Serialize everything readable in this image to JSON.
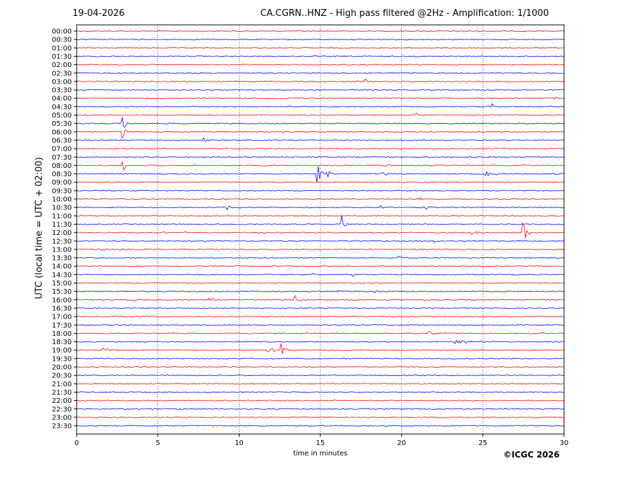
{
  "header": {
    "date": "19-04-2026",
    "title": "CA.CGRN..HNZ - High pass filtered @2Hz - Amplification: 1/1000"
  },
  "footer": {
    "credit": "©ICGC 2026"
  },
  "colors": {
    "red": "#ff0000",
    "blue": "#0000ff",
    "grid": "#0000aa",
    "axis": "#000000"
  },
  "chart_data": {
    "type": "line",
    "xlabel": "time in minutes",
    "ylabel": "UTC (local time = UTC + 02:00)",
    "xlim": [
      0,
      30
    ],
    "x_ticks": [
      0,
      5,
      10,
      15,
      20,
      25,
      30
    ],
    "grid": "vertical dotted at each x tick",
    "row_colors_alternate": [
      "red",
      "blue"
    ],
    "rows": [
      "00:00",
      "00:30",
      "01:00",
      "01:30",
      "02:00",
      "02:30",
      "03:00",
      "03:30",
      "04:00",
      "04:30",
      "05:00",
      "05:30",
      "06:00",
      "06:30",
      "07:00",
      "07:30",
      "08:00",
      "08:30",
      "09:00",
      "09:30",
      "10:00",
      "10:30",
      "11:00",
      "11:30",
      "12:00",
      "12:30",
      "13:00",
      "13:30",
      "14:00",
      "14:30",
      "15:00",
      "15:30",
      "16:00",
      "16:30",
      "17:00",
      "17:30",
      "18:00",
      "18:30",
      "19:00",
      "19:30",
      "20:00",
      "20:30",
      "21:00",
      "21:30",
      "22:00",
      "22:30",
      "23:00",
      "23:30"
    ],
    "events": [
      {
        "row": 6,
        "t": 17.8,
        "amp": 4,
        "dur": 0.2
      },
      {
        "row": 8,
        "t": 10.2,
        "amp": 3,
        "dur": 0.3
      },
      {
        "row": 8,
        "t": 29.4,
        "amp": 3,
        "dur": 0.3
      },
      {
        "row": 9,
        "t": 3.4,
        "amp": 2,
        "dur": 0.3
      },
      {
        "row": 9,
        "t": 25.6,
        "amp": 4,
        "dur": 0.3
      },
      {
        "row": 10,
        "t": 20.9,
        "amp": 3,
        "dur": 0.3
      },
      {
        "row": 11,
        "t": 2.8,
        "amp": 12,
        "dur": 0.4
      },
      {
        "row": 12,
        "t": 2.8,
        "amp": 14,
        "dur": 0.3
      },
      {
        "row": 13,
        "t": 7.8,
        "amp": 5,
        "dur": 0.2
      },
      {
        "row": 16,
        "t": 2.8,
        "amp": 16,
        "dur": 0.3
      },
      {
        "row": 16,
        "t": 19.0,
        "amp": 3,
        "dur": 0.4
      },
      {
        "row": 16,
        "t": 27.5,
        "amp": 3,
        "dur": 0.3
      },
      {
        "row": 17,
        "t": 14.8,
        "amp": 16,
        "dur": 0.4
      },
      {
        "row": 17,
        "t": 15.4,
        "amp": 6,
        "dur": 0.6
      },
      {
        "row": 17,
        "t": 18.8,
        "amp": 4,
        "dur": 0.9
      },
      {
        "row": 17,
        "t": 25.2,
        "amp": 8,
        "dur": 0.7
      },
      {
        "row": 17,
        "t": 29.3,
        "amp": 4,
        "dur": 0.4
      },
      {
        "row": 21,
        "t": 9.3,
        "amp": 4,
        "dur": 0.6
      },
      {
        "row": 21,
        "t": 18.7,
        "amp": 4,
        "dur": 0.3
      },
      {
        "row": 21,
        "t": 21.5,
        "amp": 3,
        "dur": 0.4
      },
      {
        "row": 20,
        "t": 21.0,
        "amp": 3,
        "dur": 0.5
      },
      {
        "row": 23,
        "t": 16.3,
        "amp": 14,
        "dur": 0.4
      },
      {
        "row": 24,
        "t": 3.5,
        "amp": 3,
        "dur": 0.5
      },
      {
        "row": 24,
        "t": 5.3,
        "amp": 3,
        "dur": 0.3
      },
      {
        "row": 24,
        "t": 6.7,
        "amp": 3,
        "dur": 0.3
      },
      {
        "row": 24,
        "t": 24.2,
        "amp": 4,
        "dur": 1.2
      },
      {
        "row": 24,
        "t": 27.5,
        "amp": 16,
        "dur": 0.4
      },
      {
        "row": 25,
        "t": 22.0,
        "amp": 3,
        "dur": 0.6
      },
      {
        "row": 26,
        "t": 1.3,
        "amp": 3,
        "dur": 0.6
      },
      {
        "row": 27,
        "t": 19.8,
        "amp": 3,
        "dur": 0.4
      },
      {
        "row": 29,
        "t": 17.0,
        "amp": 3,
        "dur": 0.3
      },
      {
        "row": 29,
        "t": 14.5,
        "amp": 3,
        "dur": 0.2
      },
      {
        "row": 31,
        "t": 18.3,
        "amp": 3,
        "dur": 0.5
      },
      {
        "row": 31,
        "t": 16.0,
        "amp": 3,
        "dur": 0.6
      },
      {
        "row": 32,
        "t": 3.5,
        "amp": 3,
        "dur": 0.6
      },
      {
        "row": 32,
        "t": 8.2,
        "amp": 3,
        "dur": 1.0
      },
      {
        "row": 32,
        "t": 13.4,
        "amp": 6,
        "dur": 1.0
      },
      {
        "row": 33,
        "t": 1.3,
        "amp": 3,
        "dur": 0.2
      },
      {
        "row": 36,
        "t": 21.7,
        "amp": 3,
        "dur": 0.8
      },
      {
        "row": 37,
        "t": 23.3,
        "amp": 3,
        "dur": 2.4
      },
      {
        "row": 38,
        "t": 1.6,
        "amp": 3,
        "dur": 1.2
      },
      {
        "row": 38,
        "t": 11.7,
        "amp": 4,
        "dur": 1.0
      },
      {
        "row": 38,
        "t": 12.6,
        "amp": 9,
        "dur": 0.5
      }
    ]
  }
}
